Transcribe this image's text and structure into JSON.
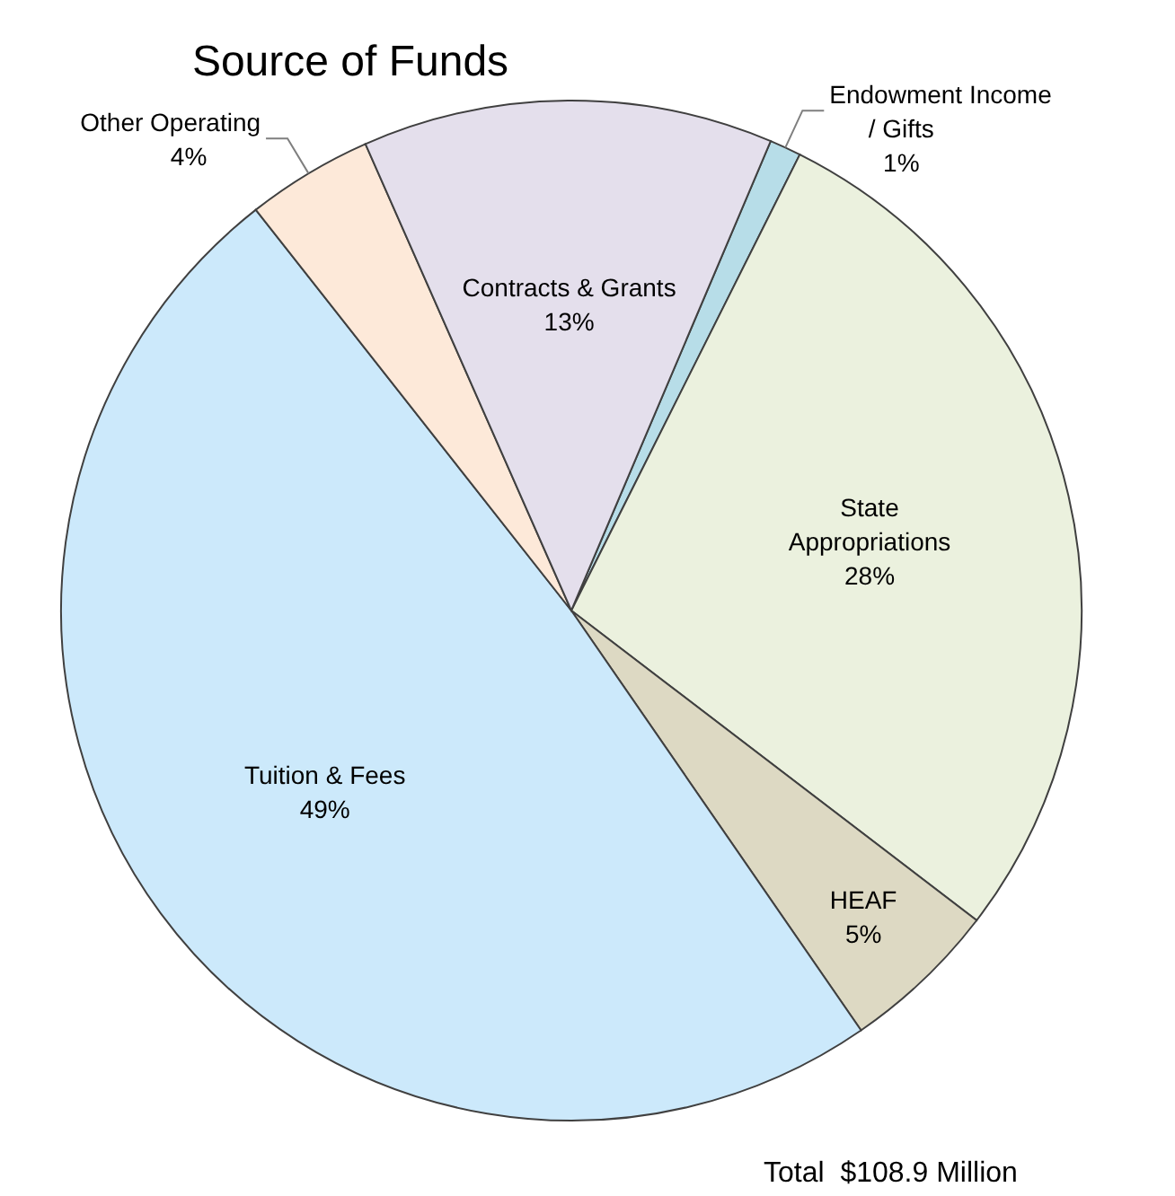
{
  "chart_data": {
    "type": "pie",
    "title": "Source of Funds",
    "categories": [
      "Endowment Income\n/ Gifts",
      "State\nAppropriations",
      "HEAF",
      "Tuition & Fees",
      "Other Operating",
      "Contracts & Grants"
    ],
    "values": [
      1,
      28,
      5,
      49,
      4,
      13
    ],
    "value_labels": [
      "1%",
      "28%",
      "5%",
      "49%",
      "4%",
      "13%"
    ],
    "colors": [
      "#b7dde8",
      "#ebf1de",
      "#ddd9c3",
      "#cce9fb",
      "#fde9d9",
      "#e4dfec"
    ],
    "annotations": [
      "Total  $108.9 Million"
    ]
  }
}
